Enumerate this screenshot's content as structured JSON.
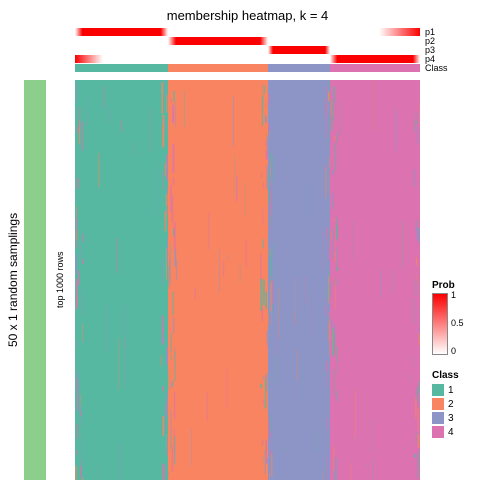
{
  "title": "membership heatmap, k = 4",
  "y_outer_label": "50 x 1 random samplings",
  "y_inner_label": "top 1000 rows",
  "background_color": "#ffffff",
  "k": 4,
  "classes": {
    "labels": [
      "1",
      "2",
      "3",
      "4"
    ],
    "colors": [
      "#57b8a1",
      "#f88461",
      "#8c95c5",
      "#dc72af"
    ],
    "widths_pct": [
      27,
      29,
      18,
      26
    ]
  },
  "sampling_bar_color": "#8ccf8c",
  "prob_legend": {
    "title": "Prob",
    "gradient_top": "#fb0000",
    "gradient_bottom": "#ffffff",
    "ticks": [
      "1",
      "0.5",
      "0"
    ]
  },
  "class_legend": {
    "title": "Class"
  },
  "track_labels": [
    "p1",
    "p2",
    "p3",
    "p4",
    "Class"
  ],
  "prob_tracks": [
    {
      "active_class": 0,
      "peak_color": "#fb0000",
      "base_color": "#ffffff",
      "right_edge_spill": 0.12
    },
    {
      "active_class": 1,
      "peak_color": "#fb0000",
      "base_color": "#ffffff",
      "right_edge_spill": 0.0
    },
    {
      "active_class": 2,
      "peak_color": "#fb0000",
      "base_color": "#ffffff",
      "right_edge_spill": 0.0
    },
    {
      "active_class": 3,
      "peak_color": "#fb0000",
      "base_color": "#ffffff",
      "right_edge_spill": 0.0,
      "left_edge_spill": 0.08
    }
  ],
  "heat": {
    "noise_color_minor": "rgba(140,149,197,0.6)",
    "noise_color_minor2": "rgba(87,184,161,0.6)",
    "noise_color_minor3": "rgba(220,114,175,0.6)"
  }
}
